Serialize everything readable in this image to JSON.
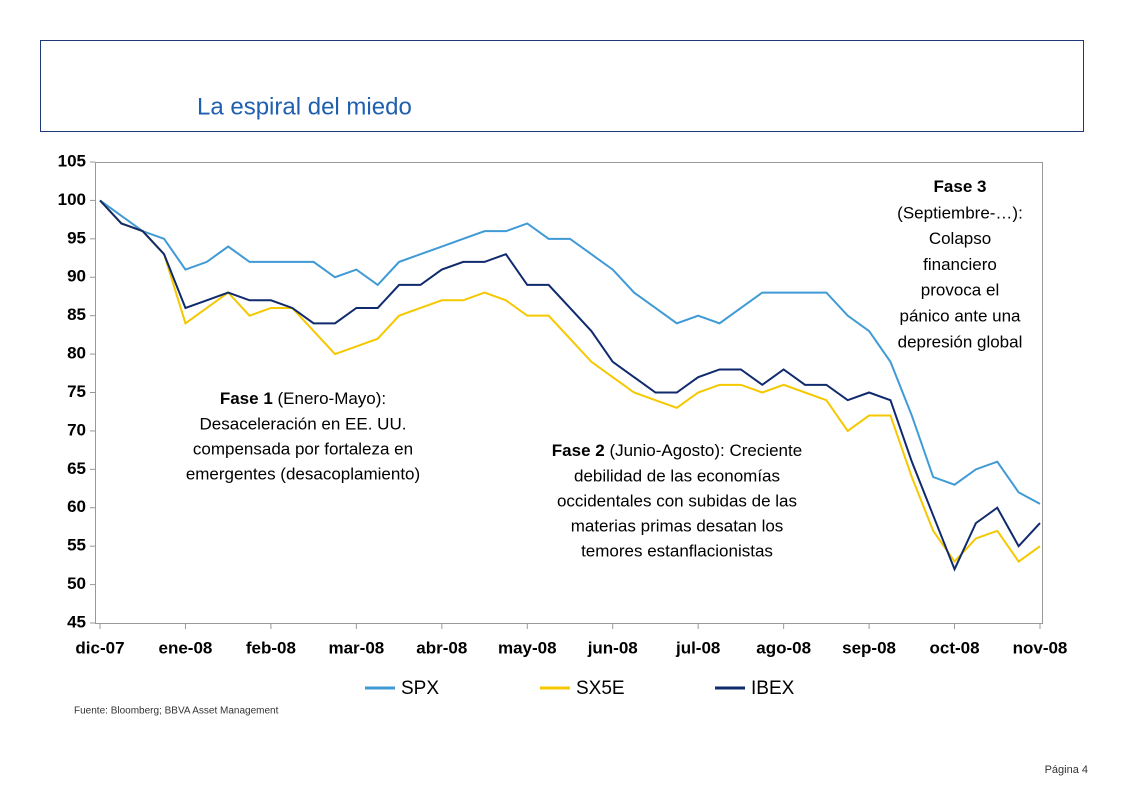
{
  "title": "La espiral del miedo",
  "source": "Fuente: Bloomberg; BBVA Asset Management",
  "page": "Página 4",
  "chart_data": {
    "type": "line",
    "x": [
      0,
      0.25,
      0.5,
      0.75,
      1,
      1.25,
      1.5,
      1.75,
      2,
      2.25,
      2.5,
      2.75,
      3,
      3.25,
      3.5,
      3.75,
      4,
      4.25,
      4.5,
      4.75,
      5,
      5.25,
      5.5,
      5.75,
      6,
      6.25,
      6.5,
      6.75,
      7,
      7.25,
      7.5,
      7.75,
      8,
      8.25,
      8.5,
      8.75,
      9,
      9.25,
      9.5,
      9.75,
      10,
      10.25,
      10.5,
      10.75,
      11
    ],
    "series": [
      {
        "name": "SPX",
        "color": "#3f9ad6",
        "values": [
          100,
          98,
          96,
          95,
          91,
          92,
          94,
          92,
          92,
          92,
          92,
          90,
          91,
          89,
          92,
          93,
          94,
          95,
          96,
          96,
          97,
          95,
          95,
          93,
          91,
          88,
          86,
          84,
          85,
          84,
          86,
          88,
          88,
          88,
          88,
          85,
          83,
          79,
          72,
          64,
          63,
          65,
          66,
          62,
          60.5
        ]
      },
      {
        "name": "SX5E",
        "color": "#f5c800",
        "values": [
          100,
          97,
          96,
          93,
          84,
          86,
          88,
          85,
          86,
          86,
          83,
          80,
          81,
          82,
          85,
          86,
          87,
          87,
          88,
          87,
          85,
          85,
          82,
          79,
          77,
          75,
          74,
          73,
          75,
          76,
          76,
          75,
          76,
          75,
          74,
          70,
          72,
          72,
          64,
          57,
          53,
          56,
          57,
          53,
          55
        ]
      },
      {
        "name": "IBEX",
        "color": "#102a6e",
        "values": [
          100,
          97,
          96,
          93,
          86,
          87,
          88,
          87,
          87,
          86,
          84,
          84,
          86,
          86,
          89,
          89,
          91,
          92,
          92,
          93,
          89,
          89,
          86,
          83,
          79,
          77,
          75,
          75,
          77,
          78,
          78,
          76,
          78,
          76,
          76,
          74,
          75,
          74,
          66,
          59,
          52,
          58,
          60,
          55,
          58
        ]
      }
    ],
    "xlim": [
      0,
      11
    ],
    "xticks": [
      {
        "value": 0,
        "label": "dic-07"
      },
      {
        "value": 1,
        "label": "ene-08"
      },
      {
        "value": 2,
        "label": "feb-08"
      },
      {
        "value": 3,
        "label": "mar-08"
      },
      {
        "value": 4,
        "label": "abr-08"
      },
      {
        "value": 5,
        "label": "may-08"
      },
      {
        "value": 6,
        "label": "jun-08"
      },
      {
        "value": 7,
        "label": "jul-08"
      },
      {
        "value": 8,
        "label": "ago-08"
      },
      {
        "value": 9,
        "label": "sep-08"
      },
      {
        "value": 10,
        "label": "oct-08"
      },
      {
        "value": 11,
        "label": "nov-08"
      }
    ],
    "ylim": [
      45,
      105
    ],
    "yticks": [
      45,
      50,
      55,
      60,
      65,
      70,
      75,
      80,
      85,
      90,
      95,
      100,
      105
    ],
    "legend": "bottom",
    "annotations": [
      {
        "bold": "Fase 1",
        "lines": [
          " (Enero-Mayo):",
          "Desaceleración en EE. UU.",
          "compensada por fortaleza en",
          "emergentes (desacoplamiento)"
        ]
      },
      {
        "bold": "Fase 2",
        "lines": [
          " (Junio-Agosto): Creciente",
          "debilidad de las economías",
          "occidentales con subidas de las",
          "materias primas desatan los",
          "temores estanflacionistas"
        ]
      },
      {
        "bold": "Fase 3",
        "lines": [
          "",
          "(Septiembre-…):",
          "Colapso",
          "financiero",
          "provoca el",
          "pánico ante una",
          "depresión global"
        ]
      }
    ]
  }
}
